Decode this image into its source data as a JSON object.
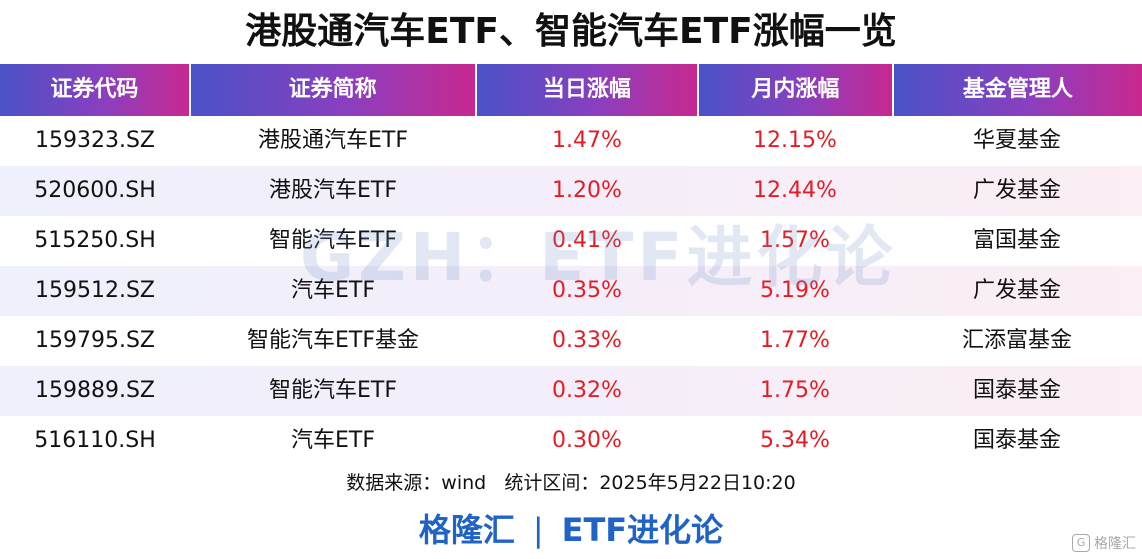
{
  "title": "港股通汽车ETF、智能汽车ETF涨幅一览",
  "headers": [
    "证券代码",
    "证券简称",
    "当日涨幅",
    "月内涨幅",
    "基金管理人"
  ],
  "rows": [
    {
      "code": "159323.SZ",
      "name": "港股通汽车ETF",
      "daily": "1.47%",
      "monthly": "12.15%",
      "manager": "华夏基金"
    },
    {
      "code": "520600.SH",
      "name": "港股汽车ETF",
      "daily": "1.20%",
      "monthly": "12.44%",
      "manager": "广发基金"
    },
    {
      "code": "515250.SH",
      "name": "智能汽车ETF",
      "daily": "0.41%",
      "monthly": "1.57%",
      "manager": "富国基金"
    },
    {
      "code": "159512.SZ",
      "name": "汽车ETF",
      "daily": "0.35%",
      "monthly": "5.19%",
      "manager": "广发基金"
    },
    {
      "code": "159795.SZ",
      "name": "智能汽车ETF基金",
      "daily": "0.33%",
      "monthly": "1.77%",
      "manager": "汇添富基金"
    },
    {
      "code": "159889.SZ",
      "name": "智能汽车ETF",
      "daily": "0.32%",
      "monthly": "1.75%",
      "manager": "国泰基金"
    },
    {
      "code": "516110.SH",
      "name": "汽车ETF",
      "daily": "0.30%",
      "monthly": "5.34%",
      "manager": "国泰基金"
    }
  ],
  "source": "数据来源：wind   统计区间：2025年5月22日10:20",
  "footer": {
    "left": "格隆汇",
    "separator": "|",
    "right": "ETF进化论"
  },
  "watermark": "GZH：ETF进化论",
  "logo_text": "格隆汇",
  "colors": {
    "header_start": "#4a52c8",
    "header_end": "#c8288f",
    "positive": "#e51c23",
    "footer": "#1f63c6"
  }
}
